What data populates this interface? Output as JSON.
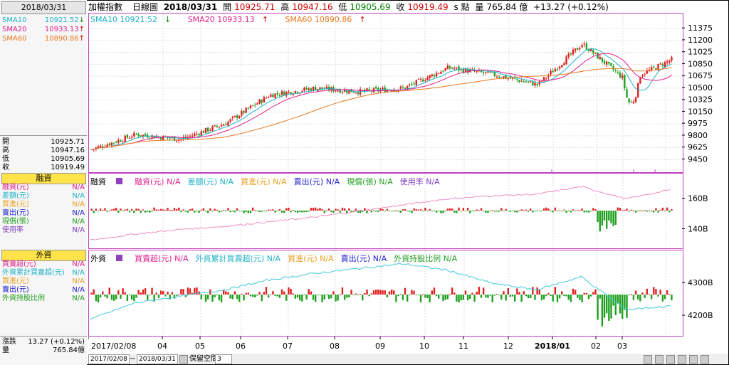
{
  "sidebar": {
    "date": "2018/03/31",
    "sma": [
      {
        "name": "SMA10",
        "value": "10921.52",
        "arrow": "↓",
        "color": "#20b2c8",
        "arrow_color": "#008000"
      },
      {
        "name": "SMA20",
        "value": "10933.13",
        "arrow": "↑",
        "color": "#e0208c",
        "arrow_color": "#d00000"
      },
      {
        "name": "SMA60",
        "value": "10890.86",
        "arrow": "↑",
        "color": "#e87820",
        "arrow_color": "#d00000"
      }
    ],
    "ohlc": [
      {
        "label": "開",
        "value": "10925.71"
      },
      {
        "label": "高",
        "value": "10947.16"
      },
      {
        "label": "低",
        "value": "10905.69"
      },
      {
        "label": "收",
        "value": "10919.49"
      }
    ],
    "margin_head": "融資",
    "margin_items": [
      {
        "label": "融資(元)",
        "value": "N/A",
        "color": "#e0208c"
      },
      {
        "label": "差額(元)",
        "value": "N/A",
        "color": "#20b2c8"
      },
      {
        "label": "買進(元)",
        "value": "N/A",
        "color": "#e8a020"
      },
      {
        "label": "賣出(元)",
        "value": "N/A",
        "color": "#2020d0"
      },
      {
        "label": "現償(張)",
        "value": "N/A",
        "color": "#20a020"
      },
      {
        "label": "使用率",
        "value": "N/A",
        "color": "#8040c0"
      }
    ],
    "foreign_head": "外資",
    "foreign_items": [
      {
        "label": "買賣超(元)",
        "value": "N/A",
        "color": "#e0208c"
      },
      {
        "label": "外資累計買賣超(元)",
        "value": "N/A",
        "color": "#20b2c8"
      },
      {
        "label": "買進(元)",
        "value": "N/A",
        "color": "#e8a020"
      },
      {
        "label": "賣出(元)",
        "value": "N/A",
        "color": "#2020d0"
      },
      {
        "label": "外資持股比例",
        "value": "N/A",
        "color": "#20a020"
      }
    ],
    "change_label": "漲跌",
    "change_value": "13.27 (+0.12%)",
    "volume_label": "量",
    "volume_value": "765.84億"
  },
  "topbar": {
    "name": "加權指數",
    "type": "日線圖",
    "date": "2018/03/31",
    "open_label": "開",
    "open": "10925.71",
    "high_label": "高",
    "high": "10947.16",
    "low_label": "低",
    "low": "10905.69",
    "close_label": "收",
    "close": "10919.49",
    "unit": "s 點",
    "vol_label": "量",
    "vol": "765.84 億",
    "change": "+13.27 (+0.12%)"
  },
  "price_legend": [
    {
      "text": "SMA10 10921.52",
      "arrow": "↓",
      "color": "#20b2c8",
      "arrow_color": "#008000"
    },
    {
      "text": "SMA20 10933.13",
      "arrow": "↑",
      "color": "#e0208c",
      "arrow_color": "#d00000"
    },
    {
      "text": "SMA60 10890.86",
      "arrow": "↑",
      "color": "#e87820",
      "arrow_color": "#d00000"
    }
  ],
  "margin_legend": {
    "title": "融資",
    "items": [
      {
        "text": "融資(元) N/A",
        "color": "#e0208c"
      },
      {
        "text": "差額(元) N/A",
        "color": "#20b2c8"
      },
      {
        "text": "買進(元) N/A",
        "color": "#e8a020"
      },
      {
        "text": "賣出(元) N/A",
        "color": "#2020d0"
      },
      {
        "text": "現償(張) N/A",
        "color": "#20a020"
      },
      {
        "text": "使用率 N/A",
        "color": "#8040c0"
      }
    ]
  },
  "foreign_legend": {
    "title": "外資",
    "items": [
      {
        "text": "買賣超(元) N/A",
        "color": "#e0208c"
      },
      {
        "text": "外資累計買賣超(元) N/A",
        "color": "#20b2c8"
      },
      {
        "text": "買進(元) N/A",
        "color": "#e8a020"
      },
      {
        "text": "賣出(元) N/A",
        "color": "#2020d0"
      },
      {
        "text": "外資持股比例 N/A",
        "color": "#20a020"
      }
    ]
  },
  "bottom": {
    "start_date": "2017/02/08",
    "tilde": "~",
    "end_date": "2018/03/31",
    "keep_label": "保留空間",
    "keep_value": "3"
  },
  "colors": {
    "up": "#e02020",
    "down": "#20a020",
    "frame": "#c040c0"
  },
  "chart_data": [
    {
      "type": "candlestick",
      "x_ticks": [
        "2017/02/08",
        "04",
        "05",
        "06",
        "07",
        "08",
        "09",
        "10",
        "11",
        "12",
        "2018/01",
        "02",
        "03"
      ],
      "y_ticks": [
        9450,
        9625,
        9800,
        9975,
        10150,
        10325,
        10500,
        10675,
        10850,
        11025,
        11200,
        11375
      ],
      "ylim": [
        9350,
        11450
      ],
      "months": [
        "2017-02",
        "2017-03",
        "2017-04",
        "2017-05",
        "2017-06",
        "2017-07",
        "2017-08",
        "2017-09",
        "2017-10",
        "2017-11",
        "2017-12",
        "2018-01",
        "2018-02",
        "2018-03"
      ],
      "close_by_month": [
        9600,
        9820,
        9750,
        9980,
        10400,
        10500,
        10450,
        10500,
        10800,
        10700,
        10550,
        11150,
        10600,
        10920
      ],
      "series": [
        {
          "name": "SMA10",
          "last": 10921.52
        },
        {
          "name": "SMA20",
          "last": 10933.13
        },
        {
          "name": "SMA60",
          "last": 10890.86
        }
      ]
    },
    {
      "type": "bar",
      "y_ticks": [
        "160B",
        "140B"
      ],
      "ylim": [
        130,
        170
      ],
      "line_by_month": [
        133,
        137,
        140,
        142,
        145,
        148,
        152,
        156,
        160,
        162,
        163,
        168,
        160,
        166
      ]
    },
    {
      "type": "bar",
      "y_ticks": [
        "4300B",
        "4200B"
      ],
      "ylim": [
        4150,
        4370
      ],
      "line_by_month": [
        4190,
        4240,
        4260,
        4280,
        4310,
        4330,
        4345,
        4360,
        4340,
        4300,
        4280,
        4320,
        4220,
        4230
      ]
    }
  ]
}
